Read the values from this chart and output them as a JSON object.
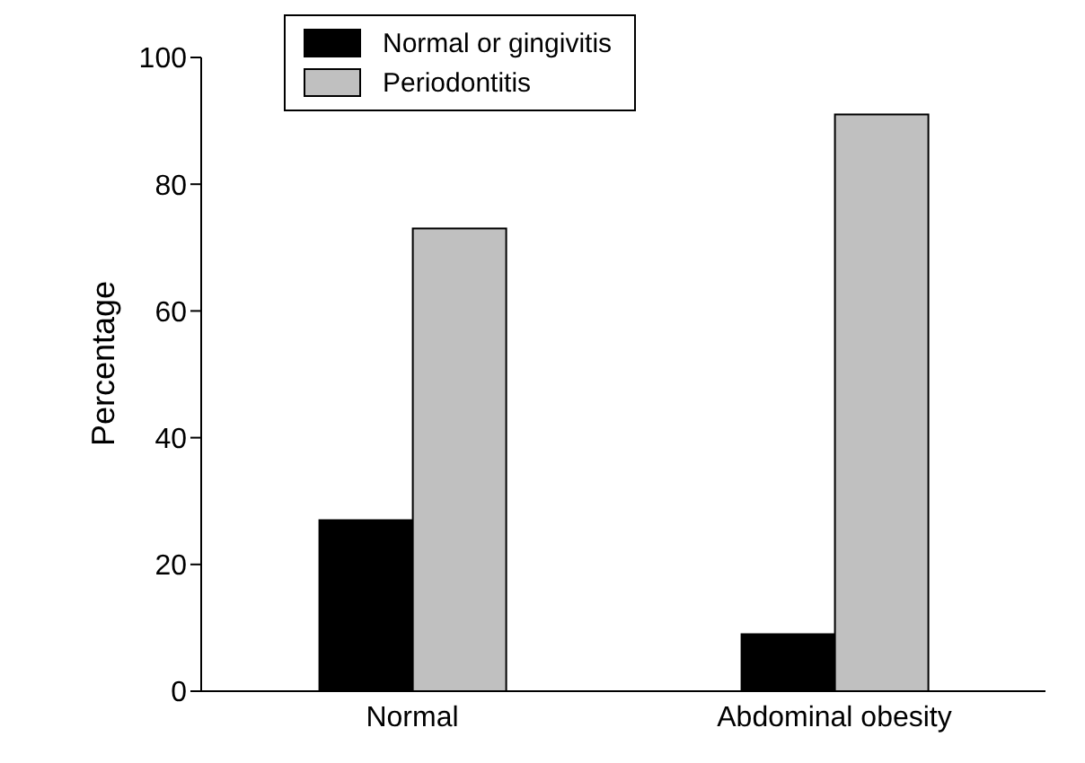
{
  "chart_data": {
    "type": "bar",
    "ylabel": "Percentage",
    "categories": [
      "Normal",
      "Abdominal obesity"
    ],
    "series": [
      {
        "name": "Normal or gingivitis",
        "color": "#000000",
        "values": [
          27,
          9
        ]
      },
      {
        "name": "Periodontitis",
        "color": "#c0c0c0",
        "values": [
          73,
          91
        ]
      }
    ],
    "ylim": [
      0,
      100
    ],
    "yticks": [
      0,
      20,
      40,
      60,
      80,
      100
    ],
    "grid": false,
    "legend": "top"
  }
}
